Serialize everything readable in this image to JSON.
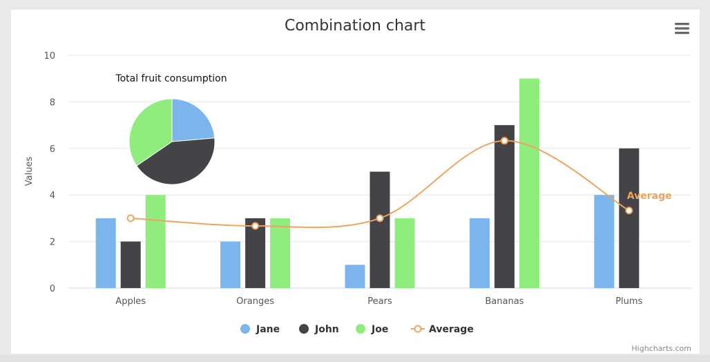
{
  "chart_data": {
    "type": "combination",
    "title": "Combination chart",
    "ylabel": "Values",
    "xlabel": "",
    "ylim": [
      0,
      10
    ],
    "yticks": [
      0,
      2,
      4,
      6,
      8,
      10
    ],
    "categories": [
      "Apples",
      "Oranges",
      "Pears",
      "Bananas",
      "Plums"
    ],
    "series": [
      {
        "name": "Jane",
        "type": "column",
        "color": "#7cb5ec",
        "values": [
          3,
          2,
          1,
          3,
          4
        ]
      },
      {
        "name": "John",
        "type": "column",
        "color": "#434348",
        "values": [
          2,
          3,
          5,
          7,
          6
        ]
      },
      {
        "name": "Joe",
        "type": "column",
        "color": "#90ed7d",
        "values": [
          4,
          3,
          3,
          9,
          0
        ]
      },
      {
        "name": "Average",
        "type": "spline",
        "color": "#f0a35a",
        "values": [
          3,
          2.67,
          3,
          6.33,
          3.33
        ],
        "end_label": "Average"
      }
    ],
    "pie": {
      "title": "Total fruit consumption",
      "slices": [
        {
          "name": "Jane",
          "value": 13,
          "color": "#7cb5ec"
        },
        {
          "name": "John",
          "value": 23,
          "color": "#434348"
        },
        {
          "name": "Joe",
          "value": 19,
          "color": "#90ed7d"
        }
      ]
    },
    "legend": [
      "Jane",
      "John",
      "Joe",
      "Average"
    ],
    "legend_position": "bottom-center",
    "grid": true
  },
  "credits": "Highcharts.com",
  "menu_icon": "hamburger-menu-icon"
}
